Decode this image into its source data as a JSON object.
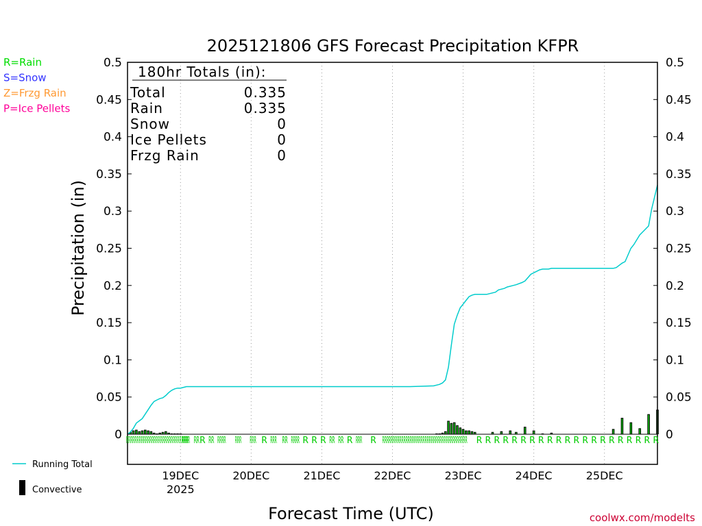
{
  "chart_data": {
    "type": "line",
    "title": "2025121806 GFS Forecast Precipitation KFPR",
    "ylabel": "Precipitation (in)",
    "xlabel": "Forecast Time (UTC)",
    "ylim": [
      0,
      0.5
    ],
    "y_ticks": [
      "0",
      "0.05",
      "0.1",
      "0.15",
      "0.2",
      "0.25",
      "0.3",
      "0.35",
      "0.4",
      "0.45",
      "0.5"
    ],
    "x_range_hours": [
      0,
      180
    ],
    "x_ticks": [
      {
        "hour": 18,
        "label": "19DEC",
        "sublabel": "2025"
      },
      {
        "hour": 42,
        "label": "20DEC",
        "sublabel": ""
      },
      {
        "hour": 66,
        "label": "21DEC",
        "sublabel": ""
      },
      {
        "hour": 90,
        "label": "22DEC",
        "sublabel": ""
      },
      {
        "hour": 114,
        "label": "23DEC",
        "sublabel": ""
      },
      {
        "hour": 138,
        "label": "24DEC",
        "sublabel": ""
      },
      {
        "hour": 162,
        "label": "25DEC",
        "sublabel": ""
      }
    ],
    "grid": "vertical dotted at day boundaries",
    "totals": {
      "header": "180hr Totals (in):",
      "rows": [
        {
          "label": "Total",
          "value": "0.335"
        },
        {
          "label": "Rain",
          "value": "0.335"
        },
        {
          "label": "Snow",
          "value": "0"
        },
        {
          "label": "Ice Pellets",
          "value": "0"
        },
        {
          "label": "Frzg Rain",
          "value": "0"
        }
      ]
    },
    "type_legend": [
      {
        "text": "R=Rain",
        "color": "#00dd00"
      },
      {
        "text": "S=Snow",
        "color": "#3333ff"
      },
      {
        "text": "Z=Frzg Rain",
        "color": "#ff9933"
      },
      {
        "text": "P=Ice Pellets",
        "color": "#ff0099"
      }
    ],
    "series": [
      {
        "name": "Running Total",
        "color": "#00cccc",
        "x": [
          0,
          1,
          2,
          3,
          4,
          5,
          6,
          7,
          8,
          9,
          10,
          11,
          12,
          13,
          14,
          15,
          16,
          17,
          18,
          19,
          20,
          21,
          22,
          24,
          30,
          60,
          90,
          96,
          104,
          106,
          107,
          108,
          109,
          110,
          111,
          112,
          113,
          114,
          115,
          116,
          117,
          118,
          119,
          120,
          122,
          125,
          126,
          128,
          129,
          131,
          132,
          134,
          135,
          137,
          138,
          140,
          141,
          143,
          144,
          165,
          166,
          168,
          169,
          171,
          172,
          174,
          175,
          177,
          178,
          180
        ],
        "values": [
          0.0,
          0.003,
          0.008,
          0.015,
          0.018,
          0.021,
          0.027,
          0.033,
          0.039,
          0.044,
          0.046,
          0.048,
          0.049,
          0.052,
          0.056,
          0.059,
          0.061,
          0.062,
          0.062,
          0.063,
          0.064,
          0.064,
          0.064,
          0.064,
          0.064,
          0.064,
          0.064,
          0.064,
          0.065,
          0.067,
          0.069,
          0.073,
          0.09,
          0.12,
          0.148,
          0.16,
          0.17,
          0.175,
          0.18,
          0.185,
          0.187,
          0.188,
          0.188,
          0.188,
          0.188,
          0.191,
          0.194,
          0.196,
          0.198,
          0.2,
          0.201,
          0.204,
          0.206,
          0.215,
          0.217,
          0.221,
          0.222,
          0.222,
          0.223,
          0.223,
          0.224,
          0.23,
          0.232,
          0.25,
          0.255,
          0.268,
          0.272,
          0.28,
          0.302,
          0.335
        ]
      },
      {
        "name": "Convective",
        "type": "bar",
        "color": "#000000",
        "x": [
          1,
          2,
          3,
          4,
          5,
          6,
          7,
          8,
          9,
          10,
          11,
          12,
          13,
          14,
          15,
          16,
          17,
          18,
          105,
          106,
          107,
          108,
          109,
          110,
          111,
          112,
          113,
          114,
          115,
          116,
          117,
          118,
          124,
          127,
          130,
          132,
          135,
          138,
          141,
          144,
          165,
          168,
          171,
          174,
          177,
          180
        ],
        "values": [
          0.003,
          0.005,
          0.006,
          0.004,
          0.005,
          0.006,
          0.005,
          0.004,
          0.002,
          0.001,
          0.002,
          0.003,
          0.004,
          0.002,
          0.001,
          0.001,
          0.001,
          0.001,
          0.001,
          0.001,
          0.002,
          0.004,
          0.018,
          0.015,
          0.016,
          0.012,
          0.009,
          0.007,
          0.005,
          0.005,
          0.004,
          0.003,
          0.003,
          0.004,
          0.005,
          0.003,
          0.01,
          0.005,
          0.001,
          0.002,
          0.007,
          0.022,
          0.016,
          0.008,
          0.027,
          0.033
        ]
      }
    ],
    "ptype_marks": [
      {
        "x": 0,
        "label": "RRRRRRRRRRRRRRRRRRRRRRRRRRRRRR"
      },
      {
        "x": 19,
        "label": "RRR"
      },
      {
        "x": 23,
        "label": "RR"
      },
      {
        "x": 25,
        "label": "R"
      },
      {
        "x": 28,
        "label": "RR"
      },
      {
        "x": 31,
        "label": "RRRR"
      },
      {
        "x": 37,
        "label": "RRR"
      },
      {
        "x": 42,
        "label": "RRR"
      },
      {
        "x": 46,
        "label": "R"
      },
      {
        "x": 49,
        "label": "RRR"
      },
      {
        "x": 53,
        "label": "RR"
      },
      {
        "x": 56,
        "label": "RRRR"
      },
      {
        "x": 60,
        "label": "R"
      },
      {
        "x": 63,
        "label": "R"
      },
      {
        "x": 66,
        "label": "R"
      },
      {
        "x": 69,
        "label": "RR"
      },
      {
        "x": 72,
        "label": "RR"
      },
      {
        "x": 75,
        "label": "R"
      },
      {
        "x": 78,
        "label": "RRR"
      },
      {
        "x": 83,
        "label": "R"
      },
      {
        "x": 87,
        "label": "RRRRRRRRRRRRRRRRRRRRRRRRRRRRRRRRRRRRRRRR"
      },
      {
        "x": 119,
        "label": "R"
      },
      {
        "x": 122,
        "label": "R"
      },
      {
        "x": 125,
        "label": "R"
      },
      {
        "x": 128,
        "label": "R"
      },
      {
        "x": 131,
        "label": "R"
      },
      {
        "x": 134,
        "label": "R"
      },
      {
        "x": 137,
        "label": "R"
      },
      {
        "x": 140,
        "label": "R"
      },
      {
        "x": 143,
        "label": "R"
      },
      {
        "x": 146,
        "label": "R"
      },
      {
        "x": 149,
        "label": "R"
      },
      {
        "x": 152,
        "label": "R"
      },
      {
        "x": 155,
        "label": "R"
      },
      {
        "x": 158,
        "label": "R"
      },
      {
        "x": 161,
        "label": "R"
      },
      {
        "x": 164,
        "label": "R"
      },
      {
        "x": 167,
        "label": "R"
      },
      {
        "x": 170,
        "label": "R"
      },
      {
        "x": 173,
        "label": "R"
      },
      {
        "x": 176,
        "label": "R"
      },
      {
        "x": 179,
        "label": "R"
      }
    ],
    "bottom_legend": [
      {
        "name": "Running Total",
        "color": "#00cccc"
      },
      {
        "name": "Convective",
        "color": "#000000"
      }
    ],
    "credit": "coolwx.com/modelts",
    "credit_color": "#cc0033"
  }
}
